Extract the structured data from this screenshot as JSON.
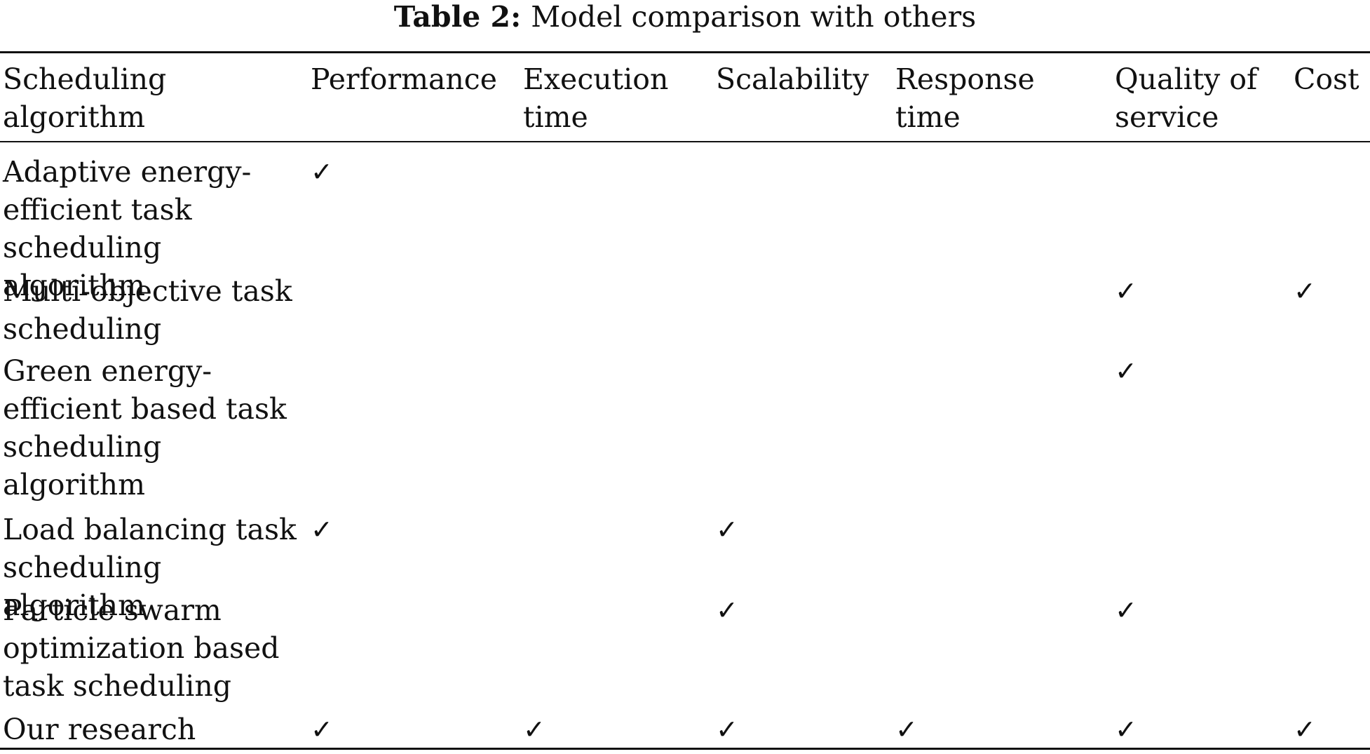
{
  "caption": {
    "label": "Table 2:",
    "text": "Model comparison with others"
  },
  "columns": [
    "Scheduling algorithm",
    "Performance",
    "Execution time",
    "Scalability",
    "Response time",
    "Quality of service",
    "Cost"
  ],
  "check_glyph": "✓",
  "rows": [
    {
      "name": "Adaptive energy-efficient task scheduling algorithm",
      "checks": [
        true,
        false,
        false,
        false,
        false,
        false
      ]
    },
    {
      "name": "Multi-objective task scheduling",
      "checks": [
        false,
        false,
        false,
        false,
        true,
        true
      ]
    },
    {
      "name": "Green energy-efficient based task scheduling algorithm",
      "checks": [
        false,
        false,
        false,
        false,
        true,
        false
      ]
    },
    {
      "name": "Load balancing task scheduling algorithm",
      "checks": [
        true,
        false,
        true,
        false,
        false,
        false
      ]
    },
    {
      "name": "Particle swarm optimization based task scheduling",
      "checks": [
        false,
        false,
        true,
        false,
        true,
        false
      ]
    },
    {
      "name": "Our research",
      "checks": [
        true,
        true,
        true,
        true,
        true,
        true
      ]
    }
  ]
}
